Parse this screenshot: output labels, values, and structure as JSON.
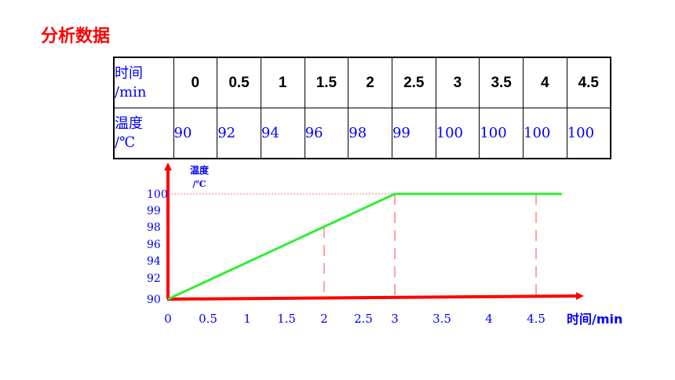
{
  "page_title": "分析数据",
  "table": {
    "time_header_line1": "时间",
    "time_header_line2": "/min",
    "temp_header_line1": "温度",
    "temp_header_line2": "/℃",
    "times": [
      "0",
      "0.5",
      "1",
      "1.5",
      "2",
      "2.5",
      "3",
      "3.5",
      "4",
      "4.5"
    ],
    "temps": [
      "90",
      "92",
      "94",
      "96",
      "98",
      "99",
      "100",
      "100",
      "100",
      "100"
    ]
  },
  "chart_data": {
    "type": "line",
    "ylabel_line1": "温度",
    "ylabel_line2": "/℃",
    "xlabel": "时间/min",
    "x_ticks": [
      "0",
      "0.5",
      "1",
      "1.5",
      "2",
      "2.5",
      "3",
      "3.5",
      "4",
      "4.5"
    ],
    "y_ticks": [
      "90",
      "92",
      "94",
      "96",
      "98",
      "99",
      "100"
    ],
    "series": [
      {
        "points": [
          [
            0,
            90
          ],
          [
            3,
            100
          ],
          [
            4.5,
            100
          ]
        ]
      }
    ],
    "line_color": "#33ee33",
    "axis_color": "#ff0000",
    "label_color": "#0000ff"
  }
}
